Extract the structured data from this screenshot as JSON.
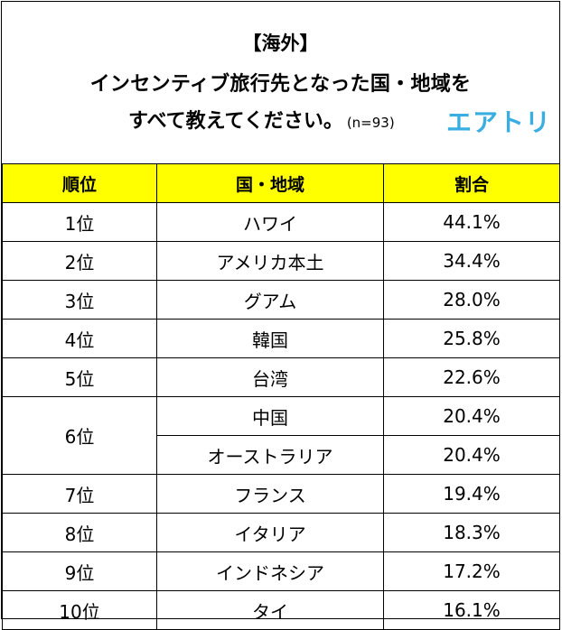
{
  "header": {
    "line1": "【海外】",
    "line2": "インセンティブ旅行先となった国・地域を",
    "line3": "すべて教えてください。",
    "sample": "(n=93)",
    "logo": "エアトリ"
  },
  "colors": {
    "header_bg": "#ffff00",
    "logo": "#3aaee0",
    "border": "#000000"
  },
  "chart_data": {
    "type": "table",
    "columns": [
      "順位",
      "国・地域",
      "割合"
    ],
    "rows": [
      {
        "rank": "1位",
        "region": "ハワイ",
        "pct": "44.1%"
      },
      {
        "rank": "2位",
        "region": "アメリカ本土",
        "pct": "34.4%"
      },
      {
        "rank": "3位",
        "region": "グアム",
        "pct": "28.0%"
      },
      {
        "rank": "4位",
        "region": "韓国",
        "pct": "25.8%"
      },
      {
        "rank": "5位",
        "region": "台湾",
        "pct": "22.6%"
      },
      {
        "rank": "6位",
        "region": "中国",
        "pct": "20.4%"
      },
      {
        "rank": "6位",
        "region": "オーストラリア",
        "pct": "20.4%"
      },
      {
        "rank": "7位",
        "region": "フランス",
        "pct": "19.4%"
      },
      {
        "rank": "8位",
        "region": "イタリア",
        "pct": "18.3%"
      },
      {
        "rank": "9位",
        "region": "インドネシア",
        "pct": "17.2%"
      },
      {
        "rank": "10位",
        "region": "タイ",
        "pct": "16.1%"
      }
    ]
  }
}
